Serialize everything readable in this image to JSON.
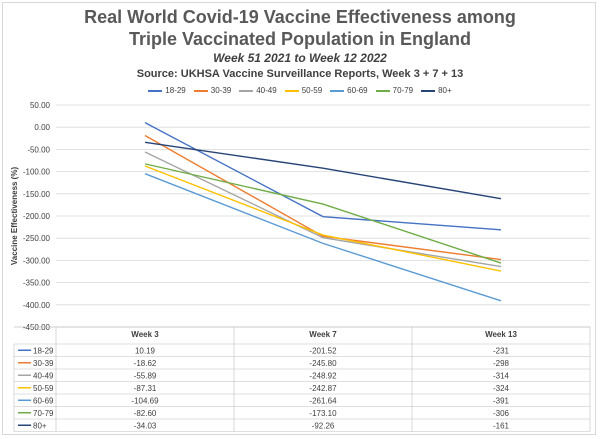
{
  "chart_data": {
    "type": "line",
    "title_line1": "Real World Covid-19 Vaccine Effectiveness among",
    "title_line2": "Triple Vaccinated Population in England",
    "subtitle": "Week 51 2021 to Week 12 2022",
    "source": "Source: UKHSA Vaccine Surveillance Reports, Week 3 + 7 + 13",
    "ylabel": "Vaccine Effectiveness (%)",
    "xlabel": "",
    "categories": [
      "Week 3",
      "Week 7",
      "Week 13"
    ],
    "ylim": [
      -450,
      50
    ],
    "yticks": [
      "50.00",
      "0.00",
      "-50.00",
      "-100.00",
      "-150.00",
      "-200.00",
      "-250.00",
      "-300.00",
      "-350.00",
      "-400.00",
      "-450.00"
    ],
    "grid": true,
    "legend_position": "top",
    "series": [
      {
        "name": "18-29",
        "color": "#4472c4",
        "values": [
          10.19,
          -201.52,
          -231
        ],
        "labels": [
          "10.19",
          "-201.52",
          "-231"
        ]
      },
      {
        "name": "30-39",
        "color": "#ed7d31",
        "values": [
          -18.62,
          -245.8,
          -298
        ],
        "labels": [
          "-18.62",
          "-245.80",
          "-298"
        ]
      },
      {
        "name": "40-49",
        "color": "#a5a5a5",
        "values": [
          -55.89,
          -248.92,
          -314
        ],
        "labels": [
          "-55.89",
          "-248.92",
          "-314"
        ]
      },
      {
        "name": "50-59",
        "color": "#ffc000",
        "values": [
          -87.31,
          -242.87,
          -324
        ],
        "labels": [
          "-87.31",
          "-242.87",
          "-324"
        ]
      },
      {
        "name": "60-69",
        "color": "#5b9bd5",
        "values": [
          -104.69,
          -261.64,
          -391
        ],
        "labels": [
          "-104.69",
          "-261.64",
          "-391"
        ]
      },
      {
        "name": "70-79",
        "color": "#70ad47",
        "values": [
          -82.6,
          -173.1,
          -306
        ],
        "labels": [
          "-82.60",
          "-173.10",
          "-306"
        ]
      },
      {
        "name": "80+",
        "color": "#264478",
        "values": [
          -34.03,
          -92.26,
          -161
        ],
        "labels": [
          "-34.03",
          "-92.26",
          "-161"
        ]
      }
    ]
  }
}
